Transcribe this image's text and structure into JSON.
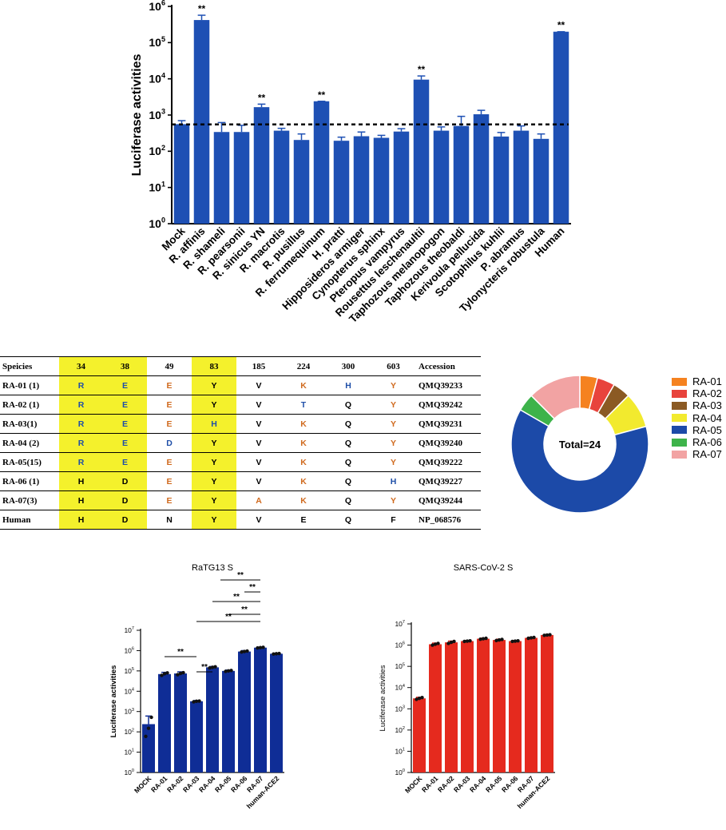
{
  "chart_data": [
    {
      "type": "bar",
      "ylabel": "Luciferase activities",
      "yscale": "log",
      "ylim": [
        1,
        1000000
      ],
      "ytick_bases": [
        "10",
        "10",
        "10",
        "10",
        "10",
        "10",
        "10"
      ],
      "ytick_exps": [
        "0",
        "1",
        "2",
        "3",
        "4",
        "5",
        "6"
      ],
      "threshold": 550,
      "categories": [
        "Mock",
        "R. affinis",
        "R. shameli",
        "R. pearsonii",
        "R. sinicus YN",
        "R. macrotis",
        "R. pusillus",
        "R. ferrumequinum",
        "H. pratti",
        "Hipposideros armiger",
        "Cynopterus sphinx",
        "Pteropus vampyrus",
        "Rousettus leschenaultii",
        "Taphozous melanopogon",
        "Taphozous theobaldi",
        "Kerivoula pellucida",
        "Scotophilus kuhlii",
        "P. abramus",
        "Tylonycteris robustula",
        "Human"
      ],
      "values": [
        560,
        420000,
        340,
        340,
        1650,
        370,
        205,
        2400,
        195,
        260,
        235,
        350,
        9500,
        370,
        500,
        1050,
        255,
        370,
        220,
        200000
      ],
      "errors": [
        700,
        570000,
        620,
        520,
        2000,
        430,
        300,
        2400,
        245,
        340,
        275,
        420,
        12000,
        470,
        920,
        1350,
        330,
        500,
        300,
        200000
      ],
      "annotations": [
        "",
        "**",
        "",
        "",
        "**",
        "",
        "",
        "**",
        "",
        "",
        "",
        "",
        "**",
        "",
        "",
        "",
        "",
        "",
        "",
        "**"
      ],
      "color": "#1e50b4"
    },
    {
      "type": "bar",
      "title": "RaTG13 S",
      "ylabel": "Luciferase activities",
      "yscale": "log",
      "ylim": [
        1,
        10000000
      ],
      "ytick_bases": [
        "10",
        "10",
        "10",
        "10",
        "10",
        "10",
        "10",
        "10"
      ],
      "ytick_exps": [
        "0",
        "1",
        "2",
        "3",
        "4",
        "5",
        "6",
        "7"
      ],
      "categories": [
        "MOCK",
        "RA-01",
        "RA-02",
        "RA-03",
        "RA-04",
        "RA-05",
        "RA-06",
        "RA-07",
        "human-ACE2"
      ],
      "values": [
        240,
        70000,
        75000,
        3200,
        150000,
        100000,
        900000,
        1400000,
        700000
      ],
      "errors": [
        600,
        85000,
        90000,
        3500,
        165000,
        110000,
        1000000,
        1450000,
        720000
      ],
      "points": [
        [
          60,
          150,
          520
        ],
        [
          60000,
          72000,
          80000
        ],
        [
          65000,
          75000,
          82000
        ],
        [
          3000,
          3200,
          3300
        ],
        [
          140000,
          150000,
          160000
        ],
        [
          95000,
          100000,
          105000
        ],
        [
          850000,
          900000,
          950000
        ],
        [
          1350000,
          1400000,
          1450000
        ],
        [
          680000,
          700000,
          720000
        ]
      ],
      "brackets": [
        {
          "from": "RA-01",
          "to": "RA-03",
          "label": "**"
        },
        {
          "from": "RA-03",
          "to": "RA-04",
          "label": "**"
        },
        {
          "from": "RA-03",
          "to": "RA-07",
          "label": "**"
        },
        {
          "from": "RA-04",
          "to": "RA-07",
          "label": "**"
        },
        {
          "from": "RA-05",
          "to": "RA-07",
          "label": "**"
        },
        {
          "from": "RA-06",
          "to": "RA-07",
          "label": "**"
        },
        {
          "from": "RA-07",
          "to": "RA-07",
          "label": "**"
        }
      ],
      "color": "#0f2d96"
    },
    {
      "type": "bar",
      "title": "SARS-CoV-2 S",
      "ylabel": "Luciferase activities",
      "yscale": "log",
      "ylim": [
        1,
        10000000
      ],
      "ytick_bases": [
        "10",
        "10",
        "10",
        "10",
        "10",
        "10",
        "10",
        "10"
      ],
      "ytick_exps": [
        "0",
        "1",
        "2",
        "3",
        "4",
        "5",
        "6",
        "7"
      ],
      "categories": [
        "MOCK",
        "RA-01",
        "RA-02",
        "RA-03",
        "RA-04",
        "RA-05",
        "RA-06",
        "RA-07",
        "human-ACE2"
      ],
      "values": [
        3100,
        1100000,
        1350000,
        1550000,
        2000000,
        1750000,
        1550000,
        2200000,
        3000000
      ],
      "errors": [
        3500,
        1250000,
        1550000,
        1650000,
        2150000,
        1900000,
        1650000,
        2350000,
        3200000
      ],
      "points": [
        [
          2800,
          3100,
          3400
        ],
        [
          1000000,
          1100000,
          1200000
        ],
        [
          1200000,
          1350000,
          1500000
        ],
        [
          1500000,
          1550000,
          1600000
        ],
        [
          1900000,
          2000000,
          2100000
        ],
        [
          1650000,
          1750000,
          1850000
        ],
        [
          1500000,
          1550000,
          1600000
        ],
        [
          2100000,
          2200000,
          2300000
        ],
        [
          2900000,
          3000000,
          3100000
        ]
      ],
      "color": "#e52a1e"
    },
    {
      "type": "pie",
      "center_label": "Total=24",
      "labels": [
        "RA-01",
        "RA-02",
        "RA-03",
        "RA-04",
        "RA-05",
        "RA-06",
        "RA-07"
      ],
      "values": [
        1,
        1,
        1,
        2,
        15,
        1,
        3
      ],
      "colors": [
        "#f58220",
        "#e8433c",
        "#8b5a23",
        "#f2ea2e",
        "#1c4aa8",
        "#3db34a",
        "#f2a3a3"
      ],
      "legend_position": "right"
    }
  ],
  "table": {
    "header": [
      "Speicies",
      "34",
      "38",
      "49",
      "83",
      "185",
      "224",
      "300",
      "603",
      "Accession"
    ],
    "highlight_cols": [
      1,
      2,
      4
    ],
    "rows": [
      {
        "label": "RA-01 (1)",
        "cells": [
          "R",
          "E",
          "E",
          "Y",
          "V",
          "K",
          "H",
          "Y"
        ],
        "colors": [
          "#1f4fa8",
          "#1f4fa8",
          "#d06a1e",
          "#000000",
          "#000000",
          "#d06a1e",
          "#1f4fa8",
          "#d06a1e"
        ],
        "accession": "QMQ39233"
      },
      {
        "label": "RA-02 (1)",
        "cells": [
          "R",
          "E",
          "E",
          "Y",
          "V",
          "T",
          "Q",
          "Y"
        ],
        "colors": [
          "#1f4fa8",
          "#1f4fa8",
          "#d06a1e",
          "#000000",
          "#000000",
          "#1f4fa8",
          "#000000",
          "#d06a1e"
        ],
        "accession": "QMQ39242"
      },
      {
        "label": "RA-03(1)",
        "cells": [
          "R",
          "E",
          "E",
          "H",
          "V",
          "K",
          "Q",
          "Y"
        ],
        "colors": [
          "#1f4fa8",
          "#1f4fa8",
          "#d06a1e",
          "#1f4fa8",
          "#000000",
          "#d06a1e",
          "#000000",
          "#d06a1e"
        ],
        "accession": "QMQ39231"
      },
      {
        "label": "RA-04 (2)",
        "cells": [
          "R",
          "E",
          "D",
          "Y",
          "V",
          "K",
          "Q",
          "Y"
        ],
        "colors": [
          "#1f4fa8",
          "#1f4fa8",
          "#1f4fa8",
          "#000000",
          "#000000",
          "#d06a1e",
          "#000000",
          "#d06a1e"
        ],
        "accession": "QMQ39240"
      },
      {
        "label": "RA-05(15)",
        "cells": [
          "R",
          "E",
          "E",
          "Y",
          "V",
          "K",
          "Q",
          "Y"
        ],
        "colors": [
          "#1f4fa8",
          "#1f4fa8",
          "#d06a1e",
          "#000000",
          "#000000",
          "#d06a1e",
          "#000000",
          "#d06a1e"
        ],
        "accession": "QMQ39222"
      },
      {
        "label": "RA-06 (1)",
        "cells": [
          "H",
          "D",
          "E",
          "Y",
          "V",
          "K",
          "Q",
          "H"
        ],
        "colors": [
          "#000000",
          "#000000",
          "#d06a1e",
          "#000000",
          "#000000",
          "#d06a1e",
          "#000000",
          "#1f4fa8"
        ],
        "accession": "QMQ39227"
      },
      {
        "label": "RA-07(3)",
        "cells": [
          "H",
          "D",
          "E",
          "Y",
          "A",
          "K",
          "Q",
          "Y"
        ],
        "colors": [
          "#000000",
          "#000000",
          "#d06a1e",
          "#000000",
          "#d06a1e",
          "#d06a1e",
          "#000000",
          "#d06a1e"
        ],
        "accession": "QMQ39244"
      },
      {
        "label": "Human",
        "cells": [
          "H",
          "D",
          "N",
          "Y",
          "V",
          "E",
          "Q",
          "F"
        ],
        "colors": [
          "#000000",
          "#000000",
          "#000000",
          "#000000",
          "#000000",
          "#000000",
          "#000000",
          "#000000"
        ],
        "accession": "NP_068576"
      }
    ]
  }
}
